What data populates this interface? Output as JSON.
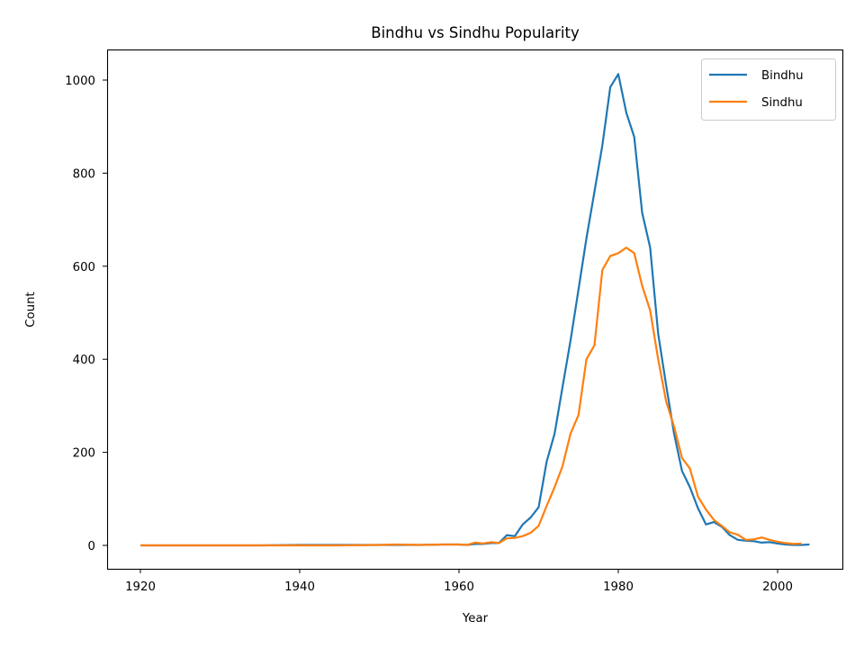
{
  "chart_data": {
    "type": "line",
    "title": "Bindhu vs Sindhu Popularity",
    "xlabel": "Year",
    "ylabel": "Count",
    "xlim": [
      1916,
      2008
    ],
    "ylim": [
      -50,
      1063
    ],
    "x_ticks": [
      1920,
      1940,
      1960,
      1980,
      2000
    ],
    "y_ticks": [
      0,
      200,
      400,
      600,
      800,
      1000
    ],
    "grid": false,
    "legend_position": "upper right",
    "series": [
      {
        "name": "Bindhu",
        "color": "#1f77b4",
        "x": [
          1920,
          1925,
          1930,
          1935,
          1940,
          1945,
          1950,
          1955,
          1958,
          1960,
          1961,
          1962,
          1963,
          1964,
          1965,
          1966,
          1967,
          1968,
          1969,
          1970,
          1971,
          1972,
          1973,
          1974,
          1975,
          1976,
          1977,
          1978,
          1979,
          1980,
          1981,
          1982,
          1983,
          1984,
          1985,
          1986,
          1987,
          1988,
          1989,
          1990,
          1991,
          1992,
          1993,
          1994,
          1995,
          1996,
          1997,
          1998,
          1999,
          2000,
          2001,
          2002,
          2003,
          2004
        ],
        "values": [
          0,
          0,
          0,
          0,
          1,
          1,
          1,
          1,
          2,
          2,
          1,
          3,
          3,
          5,
          5,
          22,
          20,
          45,
          60,
          82,
          180,
          240,
          340,
          440,
          550,
          660,
          760,
          860,
          985,
          1013,
          930,
          878,
          715,
          640,
          455,
          345,
          240,
          160,
          125,
          80,
          45,
          50,
          40,
          22,
          12,
          10,
          9,
          6,
          7,
          4,
          2,
          1,
          1,
          2
        ]
      },
      {
        "name": "Sindhu",
        "color": "#ff7f0e",
        "x": [
          1920,
          1925,
          1930,
          1935,
          1940,
          1945,
          1950,
          1952,
          1955,
          1958,
          1960,
          1961,
          1962,
          1963,
          1964,
          1965,
          1966,
          1967,
          1968,
          1969,
          1970,
          1971,
          1972,
          1973,
          1974,
          1975,
          1976,
          1977,
          1978,
          1979,
          1980,
          1981,
          1982,
          1983,
          1984,
          1985,
          1986,
          1987,
          1988,
          1989,
          1990,
          1991,
          1992,
          1993,
          1994,
          1995,
          1996,
          1997,
          1998,
          1999,
          2000,
          2001,
          2002,
          2003
        ],
        "values": [
          0,
          0,
          0,
          0,
          0,
          0,
          1,
          2,
          1,
          2,
          2,
          1,
          6,
          4,
          7,
          5,
          15,
          16,
          20,
          27,
          42,
          85,
          125,
          170,
          240,
          280,
          400,
          430,
          592,
          622,
          628,
          640,
          628,
          558,
          505,
          400,
          310,
          255,
          188,
          165,
          105,
          77,
          55,
          42,
          28,
          23,
          12,
          13,
          17,
          12,
          8,
          5,
          3,
          4
        ]
      }
    ]
  },
  "legend": {
    "items": [
      {
        "label": "Bindhu",
        "color": "#1f77b4"
      },
      {
        "label": "Sindhu",
        "color": "#ff7f0e"
      }
    ]
  }
}
